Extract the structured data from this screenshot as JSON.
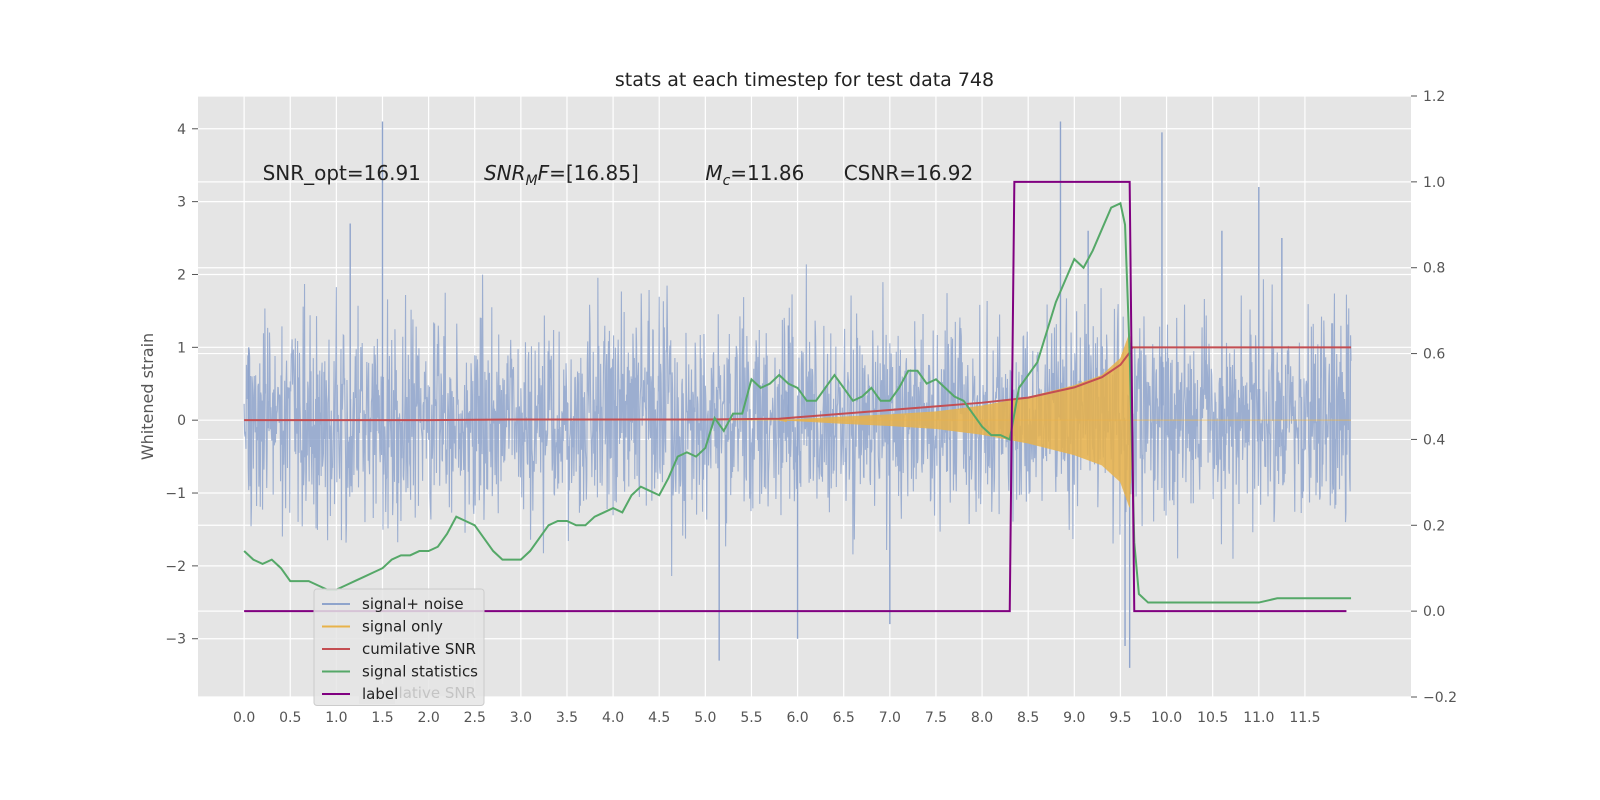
{
  "chart_data": {
    "type": "line",
    "title": "stats at each timestep for test data 748",
    "ylabel": "Whitened strain",
    "xlabel": "",
    "xlim": [
      -0.5,
      12.65
    ],
    "ylim": [
      -3.8,
      4.45
    ],
    "y2lim": [
      -0.2,
      1.2
    ],
    "grid": true,
    "background": "#e5e5e5",
    "x_ticks": [
      0.0,
      0.5,
      1.0,
      1.5,
      2.0,
      2.5,
      3.0,
      3.5,
      4.0,
      4.5,
      5.0,
      5.5,
      6.0,
      6.5,
      7.0,
      7.5,
      8.0,
      8.5,
      9.0,
      9.5,
      10.0,
      10.5,
      11.0,
      11.5
    ],
    "x_tick_labels": [
      "0.0",
      "0.5",
      "1.0",
      "1.5",
      "2.0",
      "2.5",
      "3.0",
      "3.5",
      "4.0",
      "4.5",
      "5.0",
      "5.5",
      "6.0",
      "6.5",
      "7.0",
      "7.5",
      "8.0",
      "8.5",
      "9.0",
      "9.5",
      "10.0",
      "10.5",
      "11.0",
      "11.5"
    ],
    "y_ticks": [
      -3,
      -2,
      -1,
      0,
      1,
      2,
      3,
      4
    ],
    "y_tick_labels": [
      "−3",
      "−2",
      "−1",
      "0",
      "1",
      "2",
      "3",
      "4"
    ],
    "y2_ticks": [
      -0.2,
      0.0,
      0.2,
      0.4,
      0.6,
      0.8,
      1.0,
      1.2
    ],
    "y2_tick_labels": [
      "−0.2",
      "0.0",
      "0.2",
      "0.4",
      "0.6",
      "0.8",
      "1.0",
      "1.2"
    ],
    "annotations": [
      {
        "key": "snr-opt",
        "x": 0.2,
        "y": 3.3,
        "text": "SNR_opt=16.91",
        "italic": false
      },
      {
        "key": "snr-mf",
        "x": 2.6,
        "y": 3.3,
        "text": "SNR_M F=[16.85]",
        "italic": true
      },
      {
        "key": "mc",
        "x": 5.0,
        "y": 3.3,
        "text": "M_c=11.86",
        "italic": true
      },
      {
        "key": "csnr",
        "x": 6.5,
        "y": 3.3,
        "text": "CSNR=16.92",
        "italic": false
      }
    ],
    "legend_position": "lower-left",
    "legend_ghost_text": "cumilative SNR",
    "series": [
      {
        "name": "signal+ noise",
        "color": "#8fa4cc",
        "axis": "left",
        "style": "noise",
        "x_range": [
          0.0,
          12.0
        ],
        "typical_amplitude": 1.3,
        "peaks": [
          [
            0.05,
            1.0
          ],
          [
            1.5,
            4.1
          ],
          [
            1.15,
            2.7
          ],
          [
            5.9,
            1.3
          ],
          [
            6.0,
            -3.0
          ],
          [
            5.15,
            -3.3
          ],
          [
            8.85,
            4.1
          ],
          [
            9.15,
            2.6
          ],
          [
            9.55,
            -3.1
          ],
          [
            9.6,
            -3.4
          ],
          [
            9.95,
            3.95
          ],
          [
            10.6,
            2.6
          ],
          [
            11.0,
            3.2
          ],
          [
            11.25,
            2.5
          ],
          [
            7.0,
            -2.8
          ]
        ]
      },
      {
        "name": "signal only",
        "color": "#e8b24a",
        "axis": "left",
        "style": "chirp",
        "envelope": [
          [
            5.8,
            0.0
          ],
          [
            6.5,
            0.05
          ],
          [
            7.0,
            0.08
          ],
          [
            7.5,
            0.12
          ],
          [
            8.0,
            0.2
          ],
          [
            8.5,
            0.32
          ],
          [
            9.0,
            0.48
          ],
          [
            9.3,
            0.62
          ],
          [
            9.5,
            0.85
          ],
          [
            9.6,
            1.2
          ],
          [
            9.63,
            0.02
          ]
        ]
      },
      {
        "name": "cumilative SNR",
        "color": "#c44e52",
        "axis": "left",
        "x": [
          0.0,
          1.0,
          2.0,
          3.0,
          4.0,
          5.0,
          5.8,
          6.0,
          6.5,
          7.0,
          7.5,
          8.0,
          8.5,
          9.0,
          9.3,
          9.5,
          9.6,
          9.63,
          9.65,
          10.0,
          11.0,
          12.0
        ],
        "y": [
          0.0,
          0.0,
          0.0,
          0.01,
          0.01,
          0.01,
          0.02,
          0.04,
          0.09,
          0.14,
          0.19,
          0.24,
          0.31,
          0.45,
          0.59,
          0.76,
          0.93,
          1.0,
          1.0,
          1.0,
          1.0,
          1.0
        ]
      },
      {
        "name": "signal statistics",
        "color": "#55a868",
        "axis": "right",
        "x": [
          0.0,
          0.1,
          0.2,
          0.3,
          0.4,
          0.5,
          0.6,
          0.7,
          0.8,
          0.9,
          1.0,
          1.1,
          1.2,
          1.3,
          1.4,
          1.5,
          1.6,
          1.7,
          1.8,
          1.9,
          2.0,
          2.1,
          2.2,
          2.3,
          2.4,
          2.5,
          2.6,
          2.7,
          2.8,
          2.9,
          3.0,
          3.1,
          3.2,
          3.3,
          3.4,
          3.5,
          3.6,
          3.7,
          3.8,
          3.9,
          4.0,
          4.1,
          4.2,
          4.3,
          4.4,
          4.5,
          4.6,
          4.7,
          4.8,
          4.9,
          5.0,
          5.1,
          5.2,
          5.3,
          5.4,
          5.5,
          5.6,
          5.7,
          5.8,
          5.9,
          6.0,
          6.1,
          6.2,
          6.3,
          6.4,
          6.5,
          6.6,
          6.7,
          6.8,
          6.9,
          7.0,
          7.1,
          7.2,
          7.3,
          7.4,
          7.5,
          7.6,
          7.7,
          7.8,
          7.9,
          8.0,
          8.1,
          8.2,
          8.3,
          8.4,
          8.5,
          8.6,
          8.7,
          8.8,
          8.9,
          9.0,
          9.1,
          9.2,
          9.3,
          9.4,
          9.5,
          9.55,
          9.6,
          9.65,
          9.7,
          9.8,
          9.9,
          10.0,
          10.2,
          10.5,
          11.0,
          11.2,
          11.5,
          11.8,
          12.0
        ],
        "y": [
          0.14,
          0.12,
          0.11,
          0.12,
          0.1,
          0.07,
          0.07,
          0.07,
          0.06,
          0.05,
          0.05,
          0.06,
          0.07,
          0.08,
          0.09,
          0.1,
          0.12,
          0.13,
          0.13,
          0.14,
          0.14,
          0.15,
          0.18,
          0.22,
          0.21,
          0.2,
          0.17,
          0.14,
          0.12,
          0.12,
          0.12,
          0.14,
          0.17,
          0.2,
          0.21,
          0.21,
          0.2,
          0.2,
          0.22,
          0.23,
          0.24,
          0.23,
          0.27,
          0.29,
          0.28,
          0.27,
          0.31,
          0.36,
          0.37,
          0.36,
          0.38,
          0.45,
          0.42,
          0.46,
          0.46,
          0.54,
          0.52,
          0.53,
          0.55,
          0.53,
          0.52,
          0.49,
          0.49,
          0.52,
          0.55,
          0.52,
          0.49,
          0.5,
          0.52,
          0.49,
          0.49,
          0.52,
          0.56,
          0.56,
          0.53,
          0.54,
          0.52,
          0.5,
          0.49,
          0.46,
          0.43,
          0.41,
          0.41,
          0.4,
          0.52,
          0.55,
          0.58,
          0.65,
          0.72,
          0.77,
          0.82,
          0.8,
          0.84,
          0.89,
          0.94,
          0.95,
          0.9,
          0.6,
          0.16,
          0.04,
          0.02,
          0.02,
          0.02,
          0.02,
          0.02,
          0.02,
          0.03,
          0.03,
          0.03,
          0.03
        ]
      },
      {
        "name": "label",
        "color": "#800080",
        "axis": "right",
        "x": [
          0.0,
          8.3,
          8.35,
          9.6,
          9.65,
          11.95
        ],
        "y": [
          0.0,
          0.0,
          1.0,
          1.0,
          0.0,
          0.0
        ]
      }
    ]
  }
}
